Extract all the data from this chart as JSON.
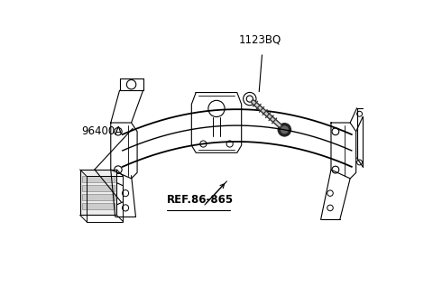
{
  "bg_color": "#ffffff",
  "line_color": "#000000",
  "fig_width": 4.8,
  "fig_height": 3.27,
  "dpi": 100,
  "label_1123BQ": "1123BQ",
  "label_96400A": "96400A",
  "label_ref": "REF.86-865"
}
